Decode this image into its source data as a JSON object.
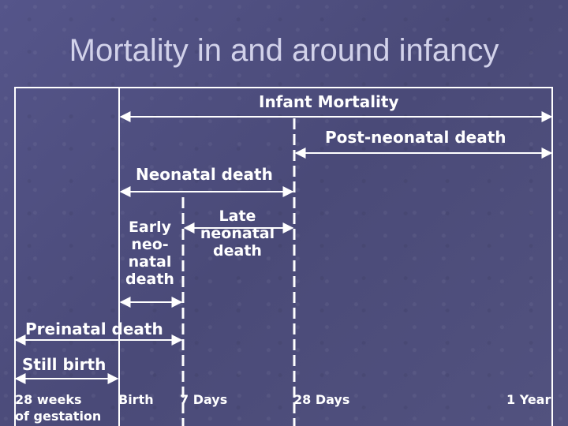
{
  "title": "Mortality in and around infancy",
  "spans": {
    "infant_mortality": "Infant Mortality",
    "post_neonatal": "Post-neonatal death",
    "neonatal": "Neonatal death",
    "late_neonatal": "Late neonatal death",
    "early_neonatal": "Early neo-natal death",
    "preinatal": "Preinatal death",
    "still_birth": "Still birth"
  },
  "timeline": {
    "weeks_28": "28 weeks",
    "of_gestation": "of gestation",
    "birth": "Birth",
    "days_7": "7 Days",
    "days_28": "28 Days",
    "year_1": "1 Year"
  }
}
